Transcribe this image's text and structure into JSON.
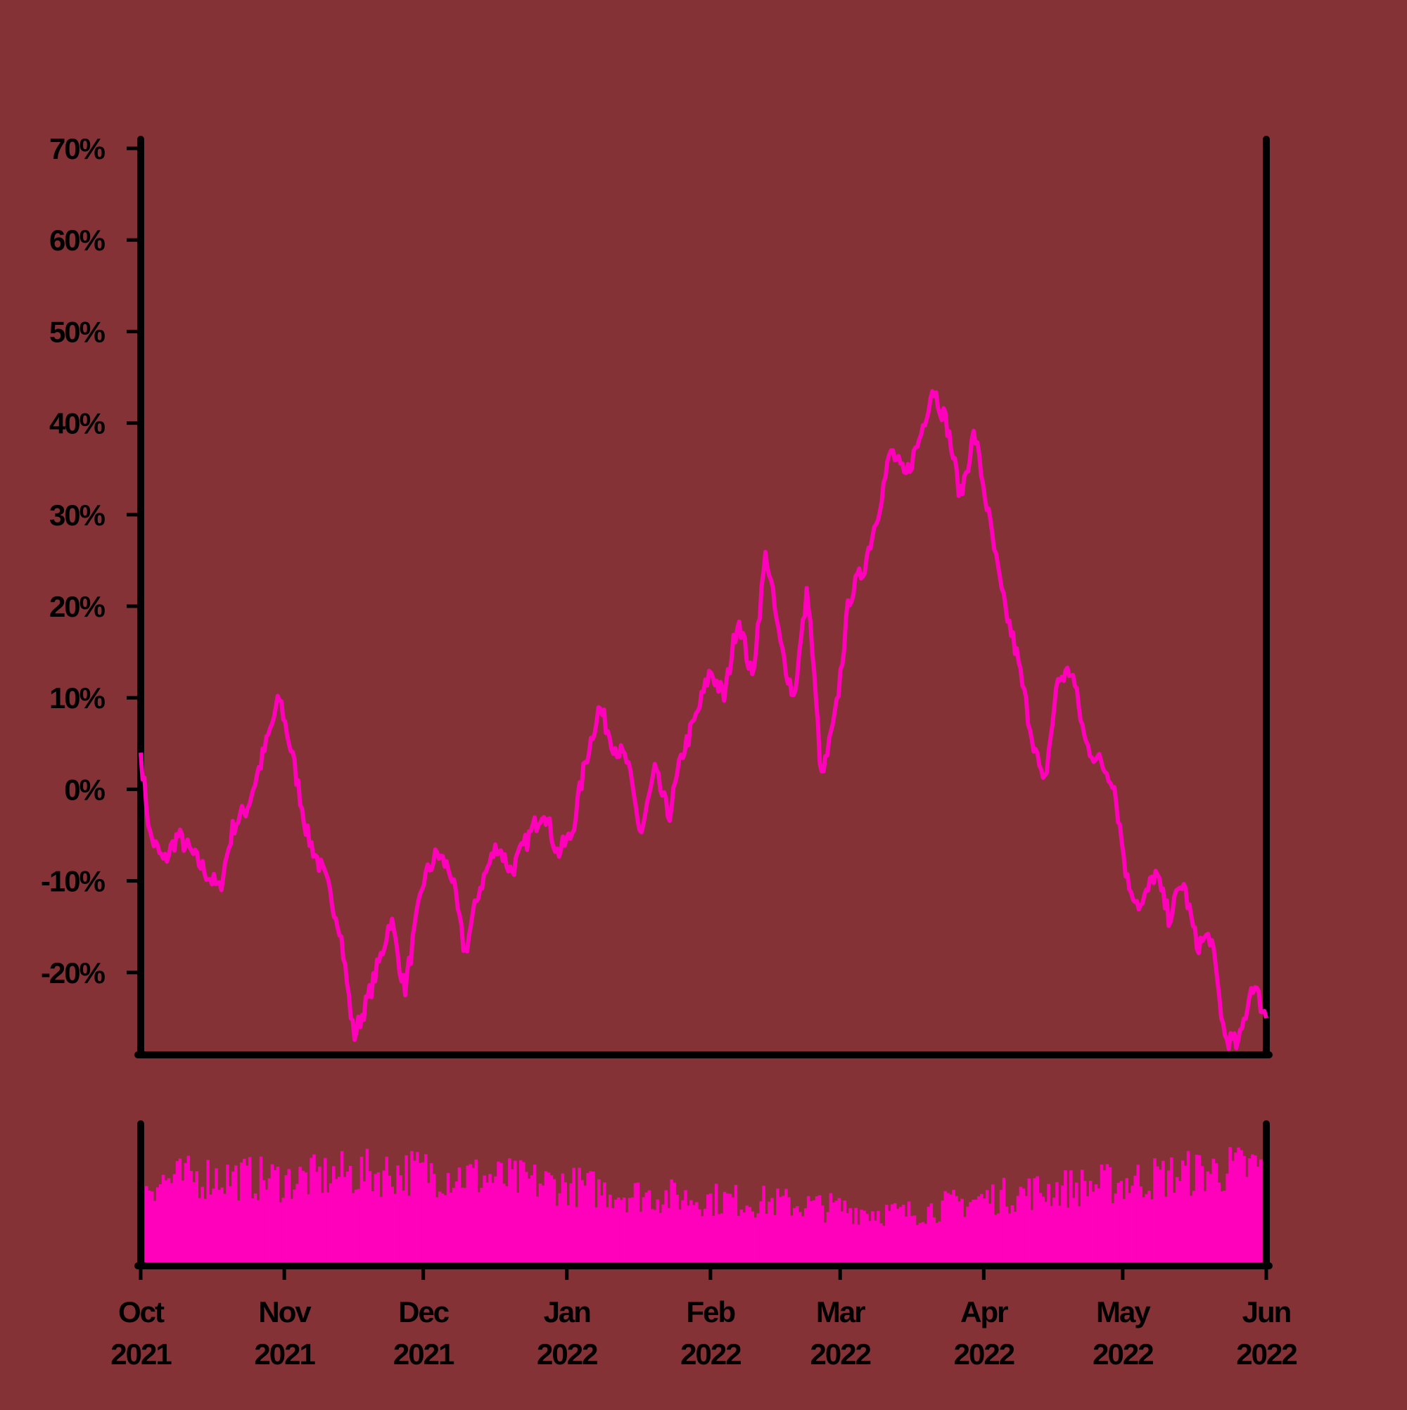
{
  "colors": {
    "background": "#843235",
    "line": "#ff00bb",
    "axis": "#000000"
  },
  "chart_data": [
    {
      "type": "line",
      "title": "",
      "xlabel": "",
      "ylabel": "",
      "xlim": [
        "2021-10-01",
        "2022-06-01"
      ],
      "ylim": [
        -29,
        71
      ],
      "yticks": [
        -20,
        -10,
        0,
        10,
        20,
        30,
        40,
        50,
        60,
        70
      ],
      "ytick_labels": [
        "-20%",
        "-10%",
        "0%",
        "10%",
        "20%",
        "30%",
        "40%",
        "50%",
        "60%",
        "70%"
      ],
      "grid": false,
      "legend": "none",
      "series": [
        {
          "x": [
            "2021-10-01",
            "2021-10-03",
            "2021-10-06",
            "2021-10-09",
            "2021-10-12",
            "2021-10-15",
            "2021-10-18",
            "2021-10-21",
            "2021-10-24",
            "2021-10-27",
            "2021-10-31",
            "2021-11-03",
            "2021-11-06",
            "2021-11-10",
            "2021-11-13",
            "2021-11-16",
            "2021-11-19",
            "2021-11-22",
            "2021-11-24",
            "2021-11-27",
            "2021-12-01",
            "2021-12-04",
            "2021-12-07",
            "2021-12-10",
            "2021-12-13",
            "2021-12-17",
            "2021-12-20",
            "2021-12-24",
            "2021-12-27",
            "2021-12-30",
            "2022-01-02",
            "2022-01-05",
            "2022-01-08",
            "2022-01-11",
            "2022-01-14",
            "2022-01-17",
            "2022-01-20",
            "2022-01-23",
            "2022-01-26",
            "2022-01-29",
            "2022-02-01",
            "2022-02-04",
            "2022-02-07",
            "2022-02-10",
            "2022-02-13",
            "2022-02-16",
            "2022-02-19",
            "2022-02-22",
            "2022-02-25",
            "2022-02-28",
            "2022-03-03",
            "2022-03-06",
            "2022-03-09",
            "2022-03-12",
            "2022-03-15",
            "2022-03-18",
            "2022-03-21",
            "2022-03-24",
            "2022-03-27",
            "2022-03-30",
            "2022-04-02",
            "2022-04-05",
            "2022-04-08",
            "2022-04-11",
            "2022-04-14",
            "2022-04-17",
            "2022-04-20",
            "2022-04-23",
            "2022-04-26",
            "2022-04-29",
            "2022-05-02",
            "2022-05-05",
            "2022-05-08",
            "2022-05-11",
            "2022-05-14",
            "2022-05-17",
            "2022-05-20",
            "2022-05-23",
            "2022-05-26",
            "2022-05-29",
            "2022-06-01"
          ],
          "y": [
            4,
            -5,
            -8,
            -5,
            -7,
            -9,
            -11,
            -4,
            -2,
            3,
            10,
            3,
            -5,
            -10,
            -15,
            -27,
            -23,
            -18,
            -14,
            -22,
            -10,
            -7,
            -9,
            -18,
            -11,
            -6,
            -9,
            -5,
            -2,
            -7,
            -5,
            3,
            9,
            5,
            3,
            -5,
            2,
            -3,
            4,
            8,
            13,
            10,
            19,
            12,
            26,
            16,
            10,
            22,
            1,
            8,
            21,
            24,
            30,
            37,
            34,
            38,
            44,
            40,
            32,
            39,
            30,
            21,
            15,
            7,
            0,
            12,
            13,
            5,
            3,
            1,
            -10,
            -13,
            -9,
            -14,
            -10,
            -17,
            -16,
            -27,
            -28,
            -21,
            -25
          ]
        }
      ]
    },
    {
      "type": "bar",
      "title": "",
      "xlabel": "",
      "ylabel": "",
      "xlim": [
        "2021-10-01",
        "2022-06-01"
      ],
      "xticks": [
        "2021-10-01",
        "2021-11-01",
        "2021-12-01",
        "2022-01-01",
        "2022-02-01",
        "2022-03-01",
        "2022-04-01",
        "2022-05-01",
        "2022-06-01"
      ],
      "xtick_labels": [
        [
          "Oct",
          "2021"
        ],
        [
          "Nov",
          "2021"
        ],
        [
          "Dec",
          "2021"
        ],
        [
          "Jan",
          "2022"
        ],
        [
          "Feb",
          "2022"
        ],
        [
          "Mar",
          "2022"
        ],
        [
          "Apr",
          "2022"
        ],
        [
          "May",
          "2022"
        ],
        [
          "Jun",
          "2022"
        ]
      ],
      "ylim": [
        0,
        1
      ],
      "grid": false,
      "legend": "none",
      "series": [
        {
          "x": [
            "2021-10-01",
            "2021-10-15",
            "2021-11-01",
            "2021-11-15",
            "2021-12-01",
            "2021-12-15",
            "2022-01-01",
            "2022-01-15",
            "2022-02-01",
            "2022-02-15",
            "2022-03-01",
            "2022-03-15",
            "2022-04-01",
            "2022-04-15",
            "2022-05-01",
            "2022-05-15",
            "2022-06-01"
          ],
          "values": [
            0.72,
            0.78,
            0.74,
            0.8,
            0.82,
            0.76,
            0.7,
            0.62,
            0.58,
            0.55,
            0.5,
            0.45,
            0.58,
            0.66,
            0.72,
            0.8,
            0.86
          ]
        }
      ]
    }
  ]
}
